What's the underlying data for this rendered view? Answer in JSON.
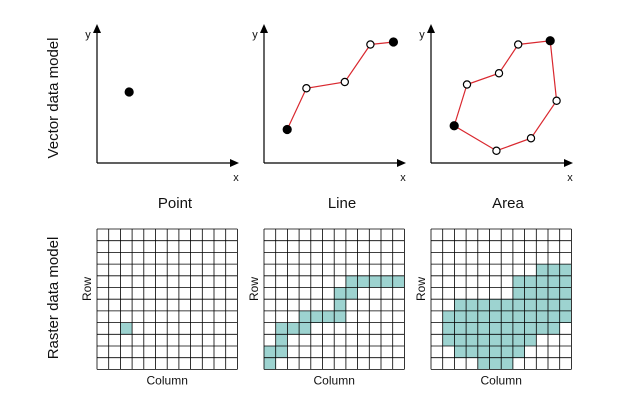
{
  "row_labels": {
    "vector": "Vector data model",
    "raster": "Raster data model"
  },
  "axis": {
    "x": "x",
    "y": "y"
  },
  "columns": [
    "Point",
    "Line",
    "Area"
  ],
  "raster_axis": {
    "row": "Row",
    "column": "Column"
  },
  "colors": {
    "line": "#d9282f",
    "fill": "#9dd3d0",
    "grid": "#000000"
  },
  "vector": {
    "point": [
      [
        0.22,
        0.52
      ]
    ],
    "line": [
      [
        0.15,
        0.22
      ],
      [
        0.3,
        0.55
      ],
      [
        0.6,
        0.6
      ],
      [
        0.8,
        0.9
      ],
      [
        0.98,
        0.92
      ]
    ],
    "line_filled": [
      0,
      4
    ],
    "area": [
      [
        0.15,
        0.25
      ],
      [
        0.25,
        0.58
      ],
      [
        0.5,
        0.67
      ],
      [
        0.65,
        0.9
      ],
      [
        0.9,
        0.93
      ],
      [
        0.95,
        0.45
      ],
      [
        0.75,
        0.15
      ],
      [
        0.48,
        0.05
      ]
    ],
    "area_filled": [
      0,
      4
    ]
  },
  "raster": {
    "grid_size": 12,
    "point": [
      [
        2,
        8
      ]
    ],
    "line": [
      [
        0,
        11
      ],
      [
        0,
        10
      ],
      [
        1,
        10
      ],
      [
        1,
        9
      ],
      [
        1,
        8
      ],
      [
        2,
        8
      ],
      [
        3,
        8
      ],
      [
        3,
        7
      ],
      [
        4,
        7
      ],
      [
        5,
        7
      ],
      [
        6,
        7
      ],
      [
        6,
        6
      ],
      [
        6,
        5
      ],
      [
        7,
        5
      ],
      [
        7,
        4
      ],
      [
        8,
        4
      ],
      [
        9,
        4
      ],
      [
        10,
        4
      ],
      [
        11,
        4
      ]
    ],
    "area": [
      [
        9,
        3
      ],
      [
        10,
        3
      ],
      [
        11,
        3
      ],
      [
        7,
        4
      ],
      [
        8,
        4
      ],
      [
        9,
        4
      ],
      [
        10,
        4
      ],
      [
        11,
        4
      ],
      [
        7,
        5
      ],
      [
        8,
        5
      ],
      [
        9,
        5
      ],
      [
        10,
        5
      ],
      [
        11,
        5
      ],
      [
        2,
        6
      ],
      [
        3,
        6
      ],
      [
        4,
        6
      ],
      [
        5,
        6
      ],
      [
        6,
        6
      ],
      [
        7,
        6
      ],
      [
        8,
        6
      ],
      [
        9,
        6
      ],
      [
        10,
        6
      ],
      [
        11,
        6
      ],
      [
        1,
        7
      ],
      [
        2,
        7
      ],
      [
        3,
        7
      ],
      [
        4,
        7
      ],
      [
        5,
        7
      ],
      [
        6,
        7
      ],
      [
        7,
        7
      ],
      [
        8,
        7
      ],
      [
        9,
        7
      ],
      [
        10,
        7
      ],
      [
        11,
        7
      ],
      [
        1,
        8
      ],
      [
        2,
        8
      ],
      [
        3,
        8
      ],
      [
        4,
        8
      ],
      [
        5,
        8
      ],
      [
        6,
        8
      ],
      [
        7,
        8
      ],
      [
        8,
        8
      ],
      [
        9,
        8
      ],
      [
        10,
        8
      ],
      [
        1,
        9
      ],
      [
        2,
        9
      ],
      [
        3,
        9
      ],
      [
        4,
        9
      ],
      [
        5,
        9
      ],
      [
        6,
        9
      ],
      [
        7,
        9
      ],
      [
        8,
        9
      ],
      [
        2,
        10
      ],
      [
        3,
        10
      ],
      [
        4,
        10
      ],
      [
        5,
        10
      ],
      [
        6,
        10
      ],
      [
        7,
        10
      ],
      [
        4,
        11
      ],
      [
        5,
        11
      ],
      [
        6,
        11
      ]
    ]
  }
}
